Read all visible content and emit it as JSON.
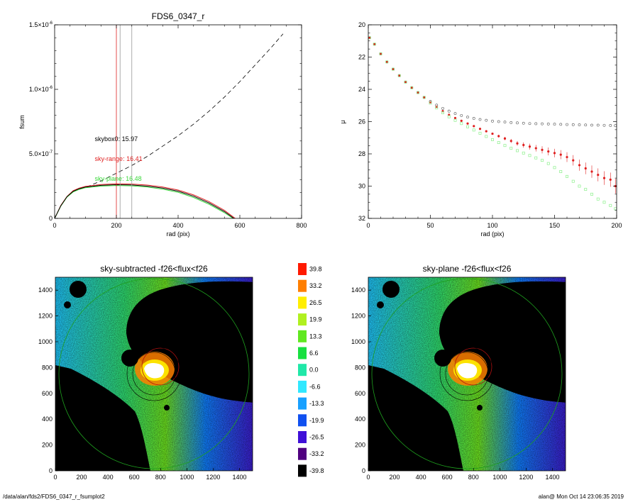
{
  "chart_data": [
    {
      "type": "line",
      "title": "FDS6_0347_r",
      "xlabel": "rad (pix)",
      "ylabel": "fsum",
      "xlim": [
        0,
        800
      ],
      "ylim": [
        0,
        1.5e-06
      ],
      "x_ticks": [
        "0",
        "200",
        "400",
        "600",
        "800"
      ],
      "y_ticks": [
        {
          "value": 0,
          "mant": "0",
          "exp": ""
        },
        {
          "value": 5e-07,
          "mant": "5.0×10",
          "exp": "-7"
        },
        {
          "value": 1e-06,
          "mant": "1.0×10",
          "exp": "-6"
        },
        {
          "value": 1.5e-06,
          "mant": "1.5×10",
          "exp": "-6"
        }
      ],
      "vlines": [
        {
          "x": 200,
          "color": "#e02020"
        },
        {
          "x": 212,
          "color": "#999999"
        },
        {
          "x": 250,
          "color": "#999999"
        }
      ],
      "annotations": [
        {
          "text": "skybox0: 15.97",
          "color": "#000000",
          "x": 130,
          "y": 6e-07
        },
        {
          "text": "sky-range: 16.41",
          "color": "#e02020",
          "x": 130,
          "y": 4.45e-07
        },
        {
          "text": "sky-plane: 16.48",
          "color": "#3ad83a",
          "x": 130,
          "y": 2.9e-07
        }
      ],
      "series": [
        {
          "style": "dashed",
          "color": "#000000",
          "points": [
            [
              60,
              2.1e-07
            ],
            [
              100,
              2.4e-07
            ],
            [
              150,
              2.9e-07
            ],
            [
              200,
              3.5e-07
            ],
            [
              250,
              4.1e-07
            ],
            [
              300,
              4.8e-07
            ],
            [
              350,
              5.6e-07
            ],
            [
              400,
              6.4e-07
            ],
            [
              450,
              7.3e-07
            ],
            [
              500,
              8.3e-07
            ],
            [
              550,
              9.4e-07
            ],
            [
              600,
              1.06e-06
            ],
            [
              650,
              1.19e-06
            ],
            [
              700,
              1.32e-06
            ],
            [
              740,
              1.43e-06
            ]
          ]
        },
        {
          "style": "solid",
          "color": "#e02020",
          "points": [
            [
              0,
              0
            ],
            [
              20,
              1e-07
            ],
            [
              40,
              1.7e-07
            ],
            [
              60,
              2.15e-07
            ],
            [
              80,
              2.35e-07
            ],
            [
              100,
              2.48e-07
            ],
            [
              150,
              2.62e-07
            ],
            [
              200,
              2.68e-07
            ],
            [
              250,
              2.66e-07
            ],
            [
              300,
              2.58e-07
            ],
            [
              350,
              2.43e-07
            ],
            [
              400,
              2.2e-07
            ],
            [
              450,
              1.82e-07
            ],
            [
              500,
              1.3e-07
            ],
            [
              550,
              6.2e-08
            ],
            [
              585,
              0
            ]
          ]
        },
        {
          "style": "solid",
          "color": "#3ad83a",
          "points": [
            [
              0,
              0
            ],
            [
              20,
              9.5e-08
            ],
            [
              40,
              1.65e-07
            ],
            [
              60,
              2.05e-07
            ],
            [
              80,
              2.25e-07
            ],
            [
              100,
              2.38e-07
            ],
            [
              150,
              2.5e-07
            ],
            [
              200,
              2.55e-07
            ],
            [
              250,
              2.52e-07
            ],
            [
              300,
              2.43e-07
            ],
            [
              350,
              2.27e-07
            ],
            [
              400,
              2.02e-07
            ],
            [
              450,
              1.62e-07
            ],
            [
              500,
              1.1e-07
            ],
            [
              550,
              4.4e-08
            ],
            [
              578,
              0
            ]
          ]
        },
        {
          "style": "solid",
          "color": "#000000",
          "points": [
            [
              0,
              0
            ],
            [
              20,
              9.8e-08
            ],
            [
              40,
              1.68e-07
            ],
            [
              60,
              2.1e-07
            ],
            [
              80,
              2.3e-07
            ],
            [
              100,
              2.43e-07
            ],
            [
              150,
              2.56e-07
            ],
            [
              200,
              2.61e-07
            ],
            [
              250,
              2.59e-07
            ],
            [
              300,
              2.5e-07
            ],
            [
              350,
              2.35e-07
            ],
            [
              400,
              2.11e-07
            ],
            [
              450,
              1.72e-07
            ],
            [
              500,
              1.2e-07
            ],
            [
              550,
              5.3e-08
            ],
            [
              581,
              0
            ]
          ]
        }
      ]
    },
    {
      "type": "scatter",
      "title": "",
      "xlabel": "rad (pix)",
      "ylabel": "μ",
      "xlim": [
        0,
        200
      ],
      "ylim": [
        32,
        20
      ],
      "x_ticks": [
        "0",
        "50",
        "100",
        "150",
        "200"
      ],
      "y_ticks": [
        "20",
        "22",
        "24",
        "26",
        "28",
        "30",
        "32"
      ],
      "series": [
        {
          "color": "#555555",
          "marker": "open-circle",
          "x": [
            1,
            5,
            10,
            15,
            20,
            25,
            30,
            35,
            40,
            45,
            50,
            55,
            60,
            65,
            70,
            75,
            80,
            85,
            90,
            95,
            100,
            105,
            110,
            115,
            120,
            125,
            130,
            135,
            140,
            145,
            150,
            155,
            160,
            165,
            170,
            175,
            180,
            185,
            190,
            195,
            199
          ],
          "y": [
            20.8,
            21.2,
            21.8,
            22.3,
            22.75,
            23.15,
            23.55,
            23.9,
            24.2,
            24.5,
            24.75,
            24.98,
            25.18,
            25.35,
            25.5,
            25.62,
            25.72,
            25.8,
            25.87,
            25.92,
            25.97,
            26.0,
            26.03,
            26.06,
            26.08,
            26.1,
            26.12,
            26.13,
            26.14,
            26.15,
            26.16,
            26.17,
            26.18,
            26.19,
            26.2,
            26.21,
            26.22,
            26.22,
            26.23,
            26.24,
            26.25
          ]
        },
        {
          "color": "#e02020",
          "marker": "filled-circle",
          "error_bars": true,
          "x": [
            1,
            5,
            10,
            15,
            20,
            25,
            30,
            35,
            40,
            45,
            50,
            55,
            60,
            65,
            70,
            75,
            80,
            85,
            90,
            95,
            100,
            105,
            110,
            115,
            120,
            125,
            130,
            135,
            140,
            145,
            150,
            155,
            160,
            165,
            170,
            175,
            180,
            185,
            190,
            195,
            199
          ],
          "y": [
            20.8,
            21.2,
            21.8,
            22.3,
            22.75,
            23.15,
            23.55,
            23.9,
            24.2,
            24.5,
            24.8,
            25.08,
            25.35,
            25.58,
            25.78,
            25.95,
            26.12,
            26.28,
            26.45,
            26.6,
            26.75,
            26.9,
            27.05,
            27.2,
            27.35,
            27.45,
            27.55,
            27.65,
            27.75,
            27.85,
            27.95,
            28.05,
            28.2,
            28.4,
            28.7,
            28.9,
            29.1,
            29.3,
            29.5,
            29.6,
            30.0
          ]
        },
        {
          "color": "#8cf08c",
          "marker": "open-square",
          "x": [
            1,
            5,
            10,
            15,
            20,
            25,
            30,
            35,
            40,
            45,
            50,
            55,
            60,
            65,
            70,
            75,
            80,
            85,
            90,
            95,
            100,
            105,
            110,
            115,
            120,
            125,
            130,
            135,
            140,
            145,
            150,
            155,
            160,
            165,
            170,
            175,
            180,
            185,
            190,
            195,
            199
          ],
          "y": [
            20.8,
            21.2,
            21.8,
            22.3,
            22.75,
            23.15,
            23.55,
            23.9,
            24.2,
            24.5,
            24.85,
            25.15,
            25.45,
            25.7,
            25.92,
            26.12,
            26.32,
            26.52,
            26.72,
            26.92,
            27.12,
            27.3,
            27.48,
            27.65,
            27.8,
            27.95,
            28.1,
            28.25,
            28.4,
            28.6,
            28.85,
            29.1,
            29.4,
            29.7,
            30.0,
            30.2,
            30.5,
            30.8,
            31.0,
            31.2,
            31.4
          ]
        }
      ]
    },
    {
      "type": "heatmap",
      "title": "sky-subtracted -f26<flux<f26",
      "xlim": [
        0,
        1500
      ],
      "ylim": [
        0,
        1500
      ],
      "x_ticks": [
        "0",
        "200",
        "400",
        "600",
        "800",
        "1000",
        "1200",
        "1400"
      ],
      "y_ticks": [
        "0",
        "200",
        "400",
        "600",
        "800",
        "1000",
        "1200",
        "1400"
      ]
    },
    {
      "type": "heatmap",
      "title": "sky-plane -f26<flux<f26",
      "xlim": [
        0,
        1500
      ],
      "ylim": [
        0,
        1500
      ],
      "x_ticks": [
        "0",
        "200",
        "400",
        "600",
        "800",
        "1000",
        "1200",
        "1400"
      ],
      "y_ticks": [
        "0",
        "200",
        "400",
        "600",
        "800",
        "1000",
        "1200",
        "1400"
      ]
    }
  ],
  "colorbar": {
    "levels": [
      {
        "label": "39.8",
        "color": "#ff1a00"
      },
      {
        "label": "33.2",
        "color": "#ff7f00"
      },
      {
        "label": "26.5",
        "color": "#ffee00"
      },
      {
        "label": "19.9",
        "color": "#b0f020"
      },
      {
        "label": "13.3",
        "color": "#60e820"
      },
      {
        "label": "6.6",
        "color": "#18e040"
      },
      {
        "label": "0.0",
        "color": "#20e8a8"
      },
      {
        "label": "-6.6",
        "color": "#30e8ff"
      },
      {
        "label": "-13.3",
        "color": "#18a0ff"
      },
      {
        "label": "-19.9",
        "color": "#1050f0"
      },
      {
        "label": "-26.5",
        "color": "#4010d8"
      },
      {
        "label": "-33.2",
        "color": "#500080"
      },
      {
        "label": "-39.8",
        "color": "#000000"
      }
    ]
  },
  "footer": {
    "left": "/data/alan/fds2/FDS6_0347_r_fsumplot2",
    "right": "alan@  Mon Oct 14 23:06:35 2019"
  }
}
